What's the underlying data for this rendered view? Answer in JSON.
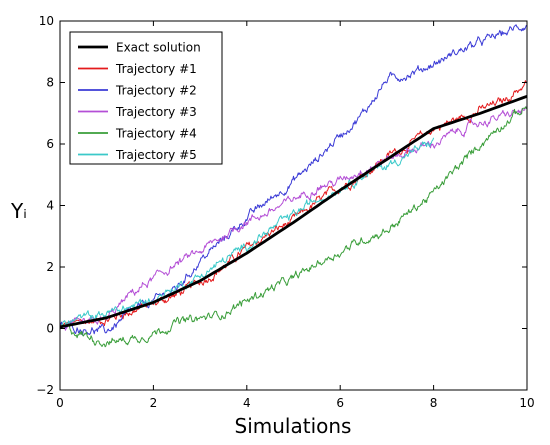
{
  "chart_data": {
    "type": "line",
    "title": "",
    "xlabel": "Simulations",
    "ylabel": "Yᵢ",
    "xlim": [
      0,
      10
    ],
    "ylim": [
      -2,
      10
    ],
    "xticks": [
      0,
      2,
      4,
      6,
      8,
      10
    ],
    "yticks": [
      -2,
      0,
      2,
      4,
      6,
      8,
      10
    ],
    "grid": false,
    "legend_position": "top-left",
    "series": [
      {
        "name": "Exact solution",
        "color": "#000000",
        "noisy": false,
        "points": [
          [
            0,
            0.05
          ],
          [
            1,
            0.35
          ],
          [
            2,
            0.85
          ],
          [
            3,
            1.55
          ],
          [
            4,
            2.45
          ],
          [
            5,
            3.45
          ],
          [
            6,
            4.5
          ],
          [
            7,
            5.5
          ],
          [
            8,
            6.5
          ],
          [
            9,
            7.0
          ],
          [
            10,
            7.55
          ]
        ]
      },
      {
        "name": "Trajectory #1",
        "color": "#e41a1c",
        "noisy": true,
        "points": [
          [
            0,
            0.05
          ],
          [
            0.5,
            0.2
          ],
          [
            1,
            0.3
          ],
          [
            1.5,
            0.55
          ],
          [
            2,
            0.8
          ],
          [
            2.5,
            1.1
          ],
          [
            3,
            1.5
          ],
          [
            3.5,
            2.0
          ],
          [
            4,
            2.6
          ],
          [
            4.5,
            3.1
          ],
          [
            5,
            3.5
          ],
          [
            5.5,
            4.1
          ],
          [
            6,
            4.6
          ],
          [
            6.5,
            5.0
          ],
          [
            7,
            5.6
          ],
          [
            7.5,
            6.0
          ],
          [
            8,
            6.5
          ],
          [
            8.5,
            6.8
          ],
          [
            9,
            7.1
          ],
          [
            9.5,
            7.4
          ],
          [
            10,
            8.0
          ]
        ]
      },
      {
        "name": "Trajectory #2",
        "color": "#3b3bd6",
        "noisy": true,
        "points": [
          [
            0,
            0.05
          ],
          [
            0.5,
            0.0
          ],
          [
            1,
            -0.1
          ],
          [
            1.5,
            0.5
          ],
          [
            2,
            0.9
          ],
          [
            2.5,
            1.3
          ],
          [
            3,
            2.2
          ],
          [
            3.5,
            2.9
          ],
          [
            4,
            3.6
          ],
          [
            4.5,
            4.2
          ],
          [
            5,
            4.8
          ],
          [
            5.5,
            5.5
          ],
          [
            6,
            6.3
          ],
          [
            6.5,
            7.0
          ],
          [
            7,
            8.1
          ],
          [
            7.5,
            8.3
          ],
          [
            8,
            8.6
          ],
          [
            8.5,
            9.0
          ],
          [
            9,
            9.3
          ],
          [
            9.5,
            9.6
          ],
          [
            10,
            9.9
          ]
        ]
      },
      {
        "name": "Trajectory #3",
        "color": "#b44fd6",
        "noisy": true,
        "points": [
          [
            0,
            0.05
          ],
          [
            0.5,
            0.1
          ],
          [
            1,
            0.3
          ],
          [
            1.5,
            1.1
          ],
          [
            2,
            1.6
          ],
          [
            2.5,
            2.1
          ],
          [
            3,
            2.5
          ],
          [
            3.5,
            3.0
          ],
          [
            4,
            3.5
          ],
          [
            4.5,
            3.8
          ],
          [
            5,
            4.2
          ],
          [
            5.5,
            4.6
          ],
          [
            6,
            4.8
          ],
          [
            6.5,
            5.2
          ],
          [
            7,
            5.5
          ],
          [
            7.5,
            5.8
          ],
          [
            8,
            6.0
          ],
          [
            8.5,
            6.4
          ],
          [
            9,
            6.7
          ],
          [
            9.5,
            6.9
          ],
          [
            10,
            7.1
          ]
        ]
      },
      {
        "name": "Trajectory #4",
        "color": "#3a9e3a",
        "noisy": true,
        "points": [
          [
            0,
            0.05
          ],
          [
            0.5,
            -0.2
          ],
          [
            1,
            -0.45
          ],
          [
            1.5,
            -0.35
          ],
          [
            2,
            -0.15
          ],
          [
            2.5,
            0.2
          ],
          [
            3,
            0.3
          ],
          [
            3.5,
            0.5
          ],
          [
            4,
            0.9
          ],
          [
            4.5,
            1.3
          ],
          [
            5,
            1.6
          ],
          [
            5.5,
            2.1
          ],
          [
            6,
            2.5
          ],
          [
            6.5,
            2.9
          ],
          [
            7,
            3.2
          ],
          [
            7.5,
            3.8
          ],
          [
            8,
            4.4
          ],
          [
            8.5,
            5.2
          ],
          [
            9,
            6.0
          ],
          [
            9.5,
            6.7
          ],
          [
            10,
            7.2
          ]
        ]
      },
      {
        "name": "Trajectory #5",
        "color": "#3ac9c9",
        "noisy": true,
        "points": [
          [
            0,
            0.1
          ],
          [
            0.5,
            0.35
          ],
          [
            1,
            0.5
          ],
          [
            1.5,
            0.7
          ],
          [
            2,
            0.95
          ],
          [
            2.5,
            1.35
          ],
          [
            3,
            1.7
          ],
          [
            3.5,
            2.2
          ],
          [
            4,
            2.7
          ],
          [
            4.5,
            3.2
          ],
          [
            5,
            3.7
          ],
          [
            5.5,
            4.2
          ],
          [
            6,
            4.6
          ],
          [
            6.5,
            5.0
          ],
          [
            7,
            5.3
          ],
          [
            7.5,
            5.7
          ],
          [
            8,
            6.1
          ]
        ]
      }
    ]
  }
}
